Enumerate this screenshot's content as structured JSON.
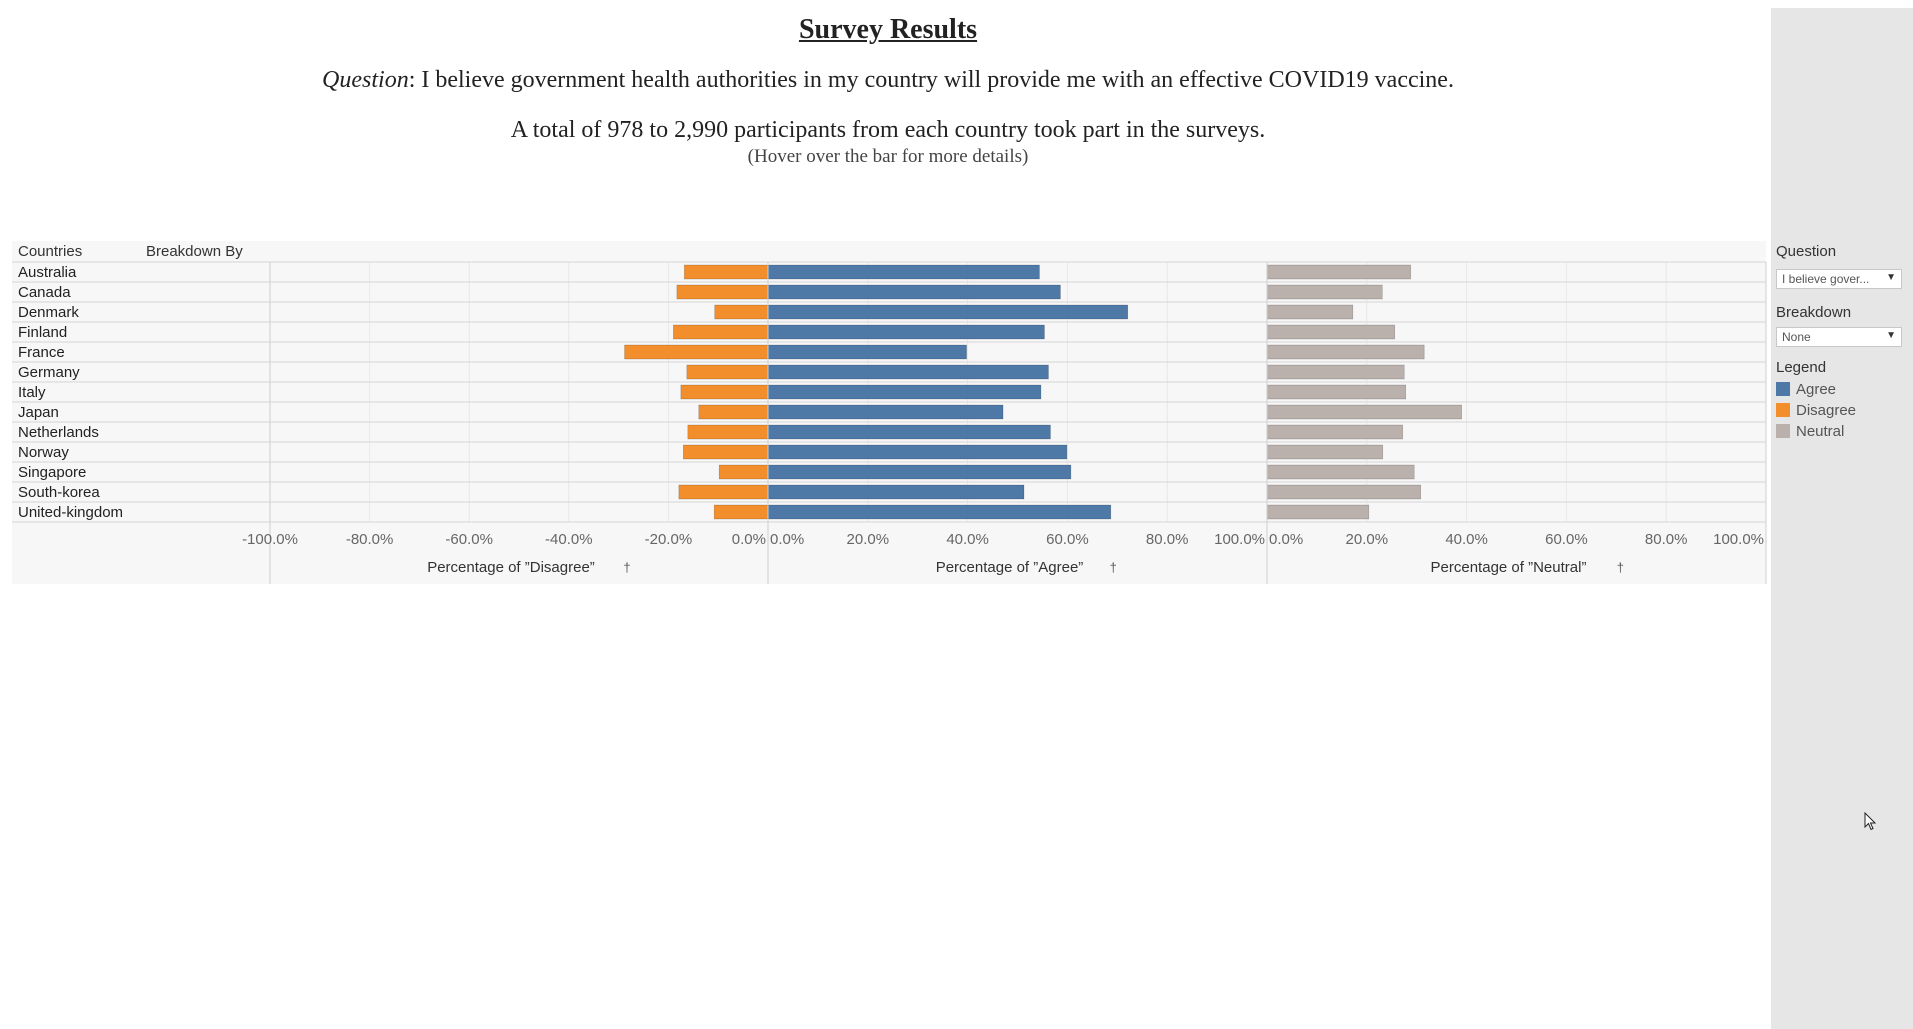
{
  "header": {
    "title": "Survey Results",
    "question_label": "Question",
    "question_text": ": I believe government health authorities in my country will provide me with an effective COVID19 vaccine.",
    "participants": "A total of 978 to 2,990 participants from each country took part in the surveys.",
    "hover_note": "(Hover over the bar for more details)"
  },
  "table_headers": {
    "countries": "Countries",
    "breakdown": "Breakdown By"
  },
  "sidebar": {
    "question_title": "Question",
    "question_value": "I believe gover...",
    "breakdown_title": "Breakdown",
    "breakdown_value": "None",
    "legend_title": "Legend",
    "legend": [
      {
        "label": "Agree",
        "color": "#4e79a7"
      },
      {
        "label": "Disagree",
        "color": "#f28e2b"
      },
      {
        "label": "Neutral",
        "color": "#bab0ac"
      }
    ]
  },
  "chart_data": {
    "type": "bar",
    "categories": [
      "Australia",
      "Canada",
      "Denmark",
      "Finland",
      "France",
      "Germany",
      "Italy",
      "Japan",
      "Netherlands",
      "Norway",
      "Singapore",
      "South-korea",
      "United-kingdom"
    ],
    "panels": [
      {
        "name": "disagree",
        "xlabel": "Percentage of ”Disagree”",
        "xlim": [
          -100,
          0
        ],
        "ticks": [
          "-100.0%",
          "-80.0%",
          "-60.0%",
          "-40.0%",
          "-20.0%",
          "0.0%"
        ],
        "tick_values": [
          -100,
          -80,
          -60,
          -40,
          -20,
          0
        ],
        "color": "#f28e2b",
        "values": [
          -16.8,
          -18.3,
          -10.7,
          -19.0,
          -28.8,
          -16.3,
          -17.5,
          -13.9,
          -16.1,
          -17.0,
          -9.8,
          -17.9,
          -10.8
        ]
      },
      {
        "name": "agree",
        "xlabel": "Percentage of ”Agree”",
        "xlim": [
          0,
          100
        ],
        "ticks": [
          "0.0%",
          "20.0%",
          "40.0%",
          "60.0%",
          "80.0%",
          "100.0%"
        ],
        "tick_values": [
          0,
          20,
          40,
          60,
          80,
          100
        ],
        "color": "#4e79a7",
        "values": [
          54.4,
          58.6,
          72.1,
          55.4,
          39.8,
          56.2,
          54.7,
          47.1,
          56.6,
          59.9,
          60.7,
          51.3,
          68.7
        ]
      },
      {
        "name": "neutral",
        "xlabel": "Percentage of ”Neutral”",
        "xlim": [
          0,
          100
        ],
        "ticks": [
          "0.0%",
          "20.0%",
          "40.0%",
          "60.0%",
          "80.0%",
          "100.0%"
        ],
        "tick_values": [
          0,
          20,
          40,
          60,
          80,
          100
        ],
        "color": "#bab0ac",
        "values": [
          28.8,
          23.1,
          17.2,
          25.6,
          31.5,
          27.5,
          27.8,
          39.0,
          27.2,
          23.2,
          29.5,
          30.8,
          20.4
        ]
      }
    ]
  }
}
